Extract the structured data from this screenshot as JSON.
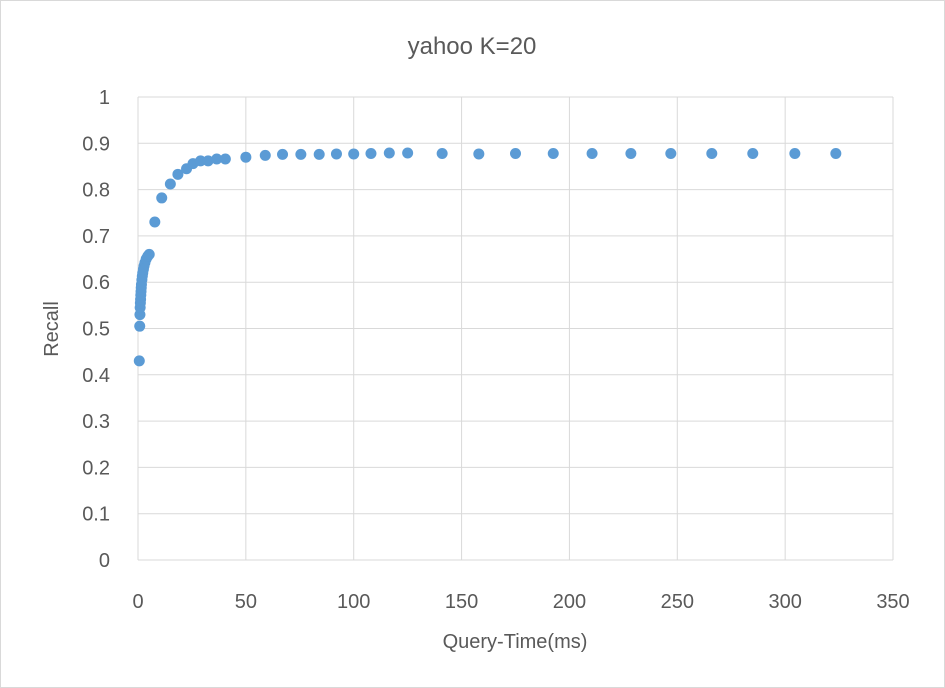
{
  "chart_data": {
    "type": "scatter",
    "title": "yahoo K=20",
    "xlabel": "Query-Time(ms)",
    "ylabel": "Recall",
    "xlim": [
      0,
      350
    ],
    "ylim": [
      0,
      1
    ],
    "x_ticks": [
      0,
      50,
      100,
      150,
      200,
      250,
      300,
      350
    ],
    "y_ticks": [
      0,
      0.1,
      0.2,
      0.3,
      0.4,
      0.5,
      0.6,
      0.7,
      0.8,
      0.9,
      1
    ],
    "grid": true,
    "legend": "none",
    "marker_color": "#5b9bd5",
    "series": [
      {
        "points": [
          [
            0.6,
            0.43
          ],
          [
            0.8,
            0.505
          ],
          [
            0.9,
            0.53
          ],
          [
            1.0,
            0.545
          ],
          [
            1.1,
            0.555
          ],
          [
            1.2,
            0.563
          ],
          [
            1.3,
            0.572
          ],
          [
            1.4,
            0.58
          ],
          [
            1.5,
            0.588
          ],
          [
            1.6,
            0.595
          ],
          [
            1.8,
            0.605
          ],
          [
            2.0,
            0.613
          ],
          [
            2.2,
            0.62
          ],
          [
            2.5,
            0.628
          ],
          [
            2.8,
            0.635
          ],
          [
            3.2,
            0.642
          ],
          [
            3.8,
            0.65
          ],
          [
            4.5,
            0.656
          ],
          [
            5.2,
            0.66
          ],
          [
            7.8,
            0.73
          ],
          [
            11,
            0.782
          ],
          [
            15,
            0.812
          ],
          [
            18.5,
            0.833
          ],
          [
            22.5,
            0.845
          ],
          [
            25.5,
            0.856
          ],
          [
            29,
            0.862
          ],
          [
            32.5,
            0.862
          ],
          [
            36.5,
            0.866
          ],
          [
            40.5,
            0.866
          ],
          [
            50,
            0.87
          ],
          [
            59,
            0.874
          ],
          [
            67,
            0.876
          ],
          [
            75.5,
            0.876
          ],
          [
            84,
            0.876
          ],
          [
            92,
            0.877
          ],
          [
            100,
            0.877
          ],
          [
            108,
            0.878
          ],
          [
            116.5,
            0.879
          ],
          [
            125,
            0.879
          ],
          [
            141,
            0.878
          ],
          [
            158,
            0.877
          ],
          [
            175,
            0.878
          ],
          [
            192.5,
            0.878
          ],
          [
            210.5,
            0.878
          ],
          [
            228.5,
            0.878
          ],
          [
            247,
            0.878
          ],
          [
            266,
            0.878
          ],
          [
            285,
            0.878
          ],
          [
            304.5,
            0.878
          ],
          [
            323.5,
            0.878
          ]
        ]
      }
    ]
  }
}
